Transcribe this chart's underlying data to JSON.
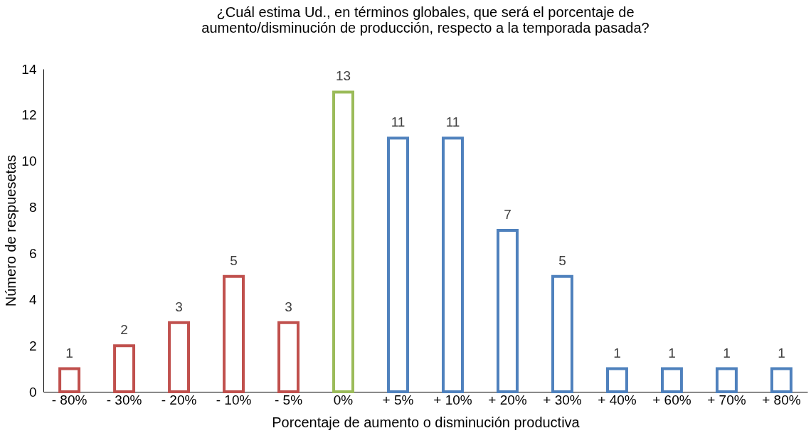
{
  "chart_data": {
    "type": "bar",
    "title": [
      "¿Cuál estima Ud., en términos globales, que será el porcentaje de",
      "aumento/disminución de producción, respecto a la temporada pasada?"
    ],
    "xlabel": "Porcentaje de aumento o disminución productiva",
    "ylabel": "Número de respuesetas",
    "categories": [
      "- 80%",
      "- 30%",
      "- 20%",
      "- 10%",
      "- 5%",
      "0%",
      "+ 5%",
      "+ 10%",
      "+ 20%",
      "+ 30%",
      "+ 40%",
      "+ 60%",
      "+ 70%",
      "+ 80%"
    ],
    "values": [
      1,
      2,
      3,
      5,
      3,
      13,
      11,
      11,
      7,
      5,
      1,
      1,
      1,
      1
    ],
    "colors": [
      "#c0504d",
      "#c0504d",
      "#c0504d",
      "#c0504d",
      "#c0504d",
      "#9bbb59",
      "#4f81bd",
      "#4f81bd",
      "#4f81bd",
      "#4f81bd",
      "#4f81bd",
      "#4f81bd",
      "#4f81bd",
      "#4f81bd"
    ],
    "ylim": [
      0,
      14
    ],
    "yticks": [
      0,
      2,
      4,
      6,
      8,
      10,
      12,
      14
    ],
    "grid": false,
    "data_labels": true
  }
}
